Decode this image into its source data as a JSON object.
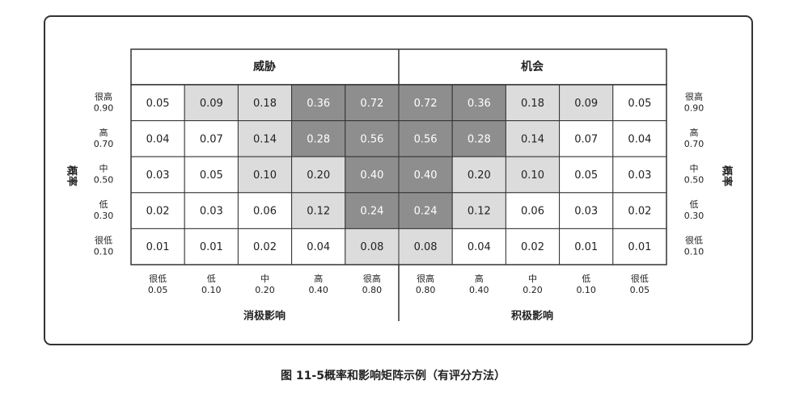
{
  "header": {
    "threat": "威胁",
    "opportunity": "机会"
  },
  "row_labels": [
    {
      "level": "很高",
      "value": "0.90"
    },
    {
      "level": "高",
      "value": "0.70"
    },
    {
      "level": "中",
      "value": "0.50"
    },
    {
      "level": "低",
      "value": "0.30"
    },
    {
      "level": "很低",
      "value": "0.10"
    }
  ],
  "threat_impacts": [
    {
      "level": "很低",
      "value": "0.05"
    },
    {
      "level": "低",
      "value": "0.10"
    },
    {
      "level": "中",
      "value": "0.20"
    },
    {
      "level": "高",
      "value": "0.40"
    },
    {
      "level": "很高",
      "value": "0.80"
    }
  ],
  "opportunity_impacts": [
    {
      "level": "很高",
      "value": "0.80"
    },
    {
      "level": "高",
      "value": "0.40"
    },
    {
      "level": "中",
      "value": "0.20"
    },
    {
      "level": "低",
      "value": "0.10"
    },
    {
      "level": "很低",
      "value": "0.05"
    }
  ],
  "threat_axis": "消极影响",
  "opportunity_axis": "积极影响",
  "probability_axis": "概率",
  "matrix": {
    "rows": [
      [
        "0.05",
        "0.09",
        "0.18",
        "0.36",
        "0.72",
        "0.72",
        "0.36",
        "0.18",
        "0.09",
        "0.05"
      ],
      [
        "0.04",
        "0.07",
        "0.14",
        "0.28",
        "0.56",
        "0.56",
        "0.28",
        "0.14",
        "0.07",
        "0.04"
      ],
      [
        "0.03",
        "0.05",
        "0.10",
        "0.20",
        "0.40",
        "0.40",
        "0.20",
        "0.10",
        "0.05",
        "0.03"
      ],
      [
        "0.02",
        "0.03",
        "0.06",
        "0.12",
        "0.24",
        "0.24",
        "0.12",
        "0.06",
        "0.03",
        "0.02"
      ],
      [
        "0.01",
        "0.01",
        "0.02",
        "0.04",
        "0.08",
        "0.08",
        "0.04",
        "0.02",
        "0.01",
        "0.01"
      ]
    ],
    "cell_colors": [
      [
        "#ffffff",
        "#dcdcdc",
        "#dcdcdc",
        "#8e8e8e",
        "#8e8e8e",
        "#8e8e8e",
        "#8e8e8e",
        "#dcdcdc",
        "#dcdcdc",
        "#ffffff"
      ],
      [
        "#ffffff",
        "#ffffff",
        "#dcdcdc",
        "#8e8e8e",
        "#8e8e8e",
        "#8e8e8e",
        "#8e8e8e",
        "#dcdcdc",
        "#ffffff",
        "#ffffff"
      ],
      [
        "#ffffff",
        "#ffffff",
        "#dcdcdc",
        "#dcdcdc",
        "#8e8e8e",
        "#8e8e8e",
        "#dcdcdc",
        "#dcdcdc",
        "#ffffff",
        "#ffffff"
      ],
      [
        "#ffffff",
        "#ffffff",
        "#ffffff",
        "#dcdcdc",
        "#8e8e8e",
        "#8e8e8e",
        "#dcdcdc",
        "#ffffff",
        "#ffffff",
        "#ffffff"
      ],
      [
        "#ffffff",
        "#ffffff",
        "#ffffff",
        "#ffffff",
        "#dcdcdc",
        "#dcdcdc",
        "#ffffff",
        "#ffffff",
        "#ffffff",
        "#ffffff"
      ]
    ]
  },
  "caption": "图 11-5概率和影响矩阵示例（有评分方法）"
}
